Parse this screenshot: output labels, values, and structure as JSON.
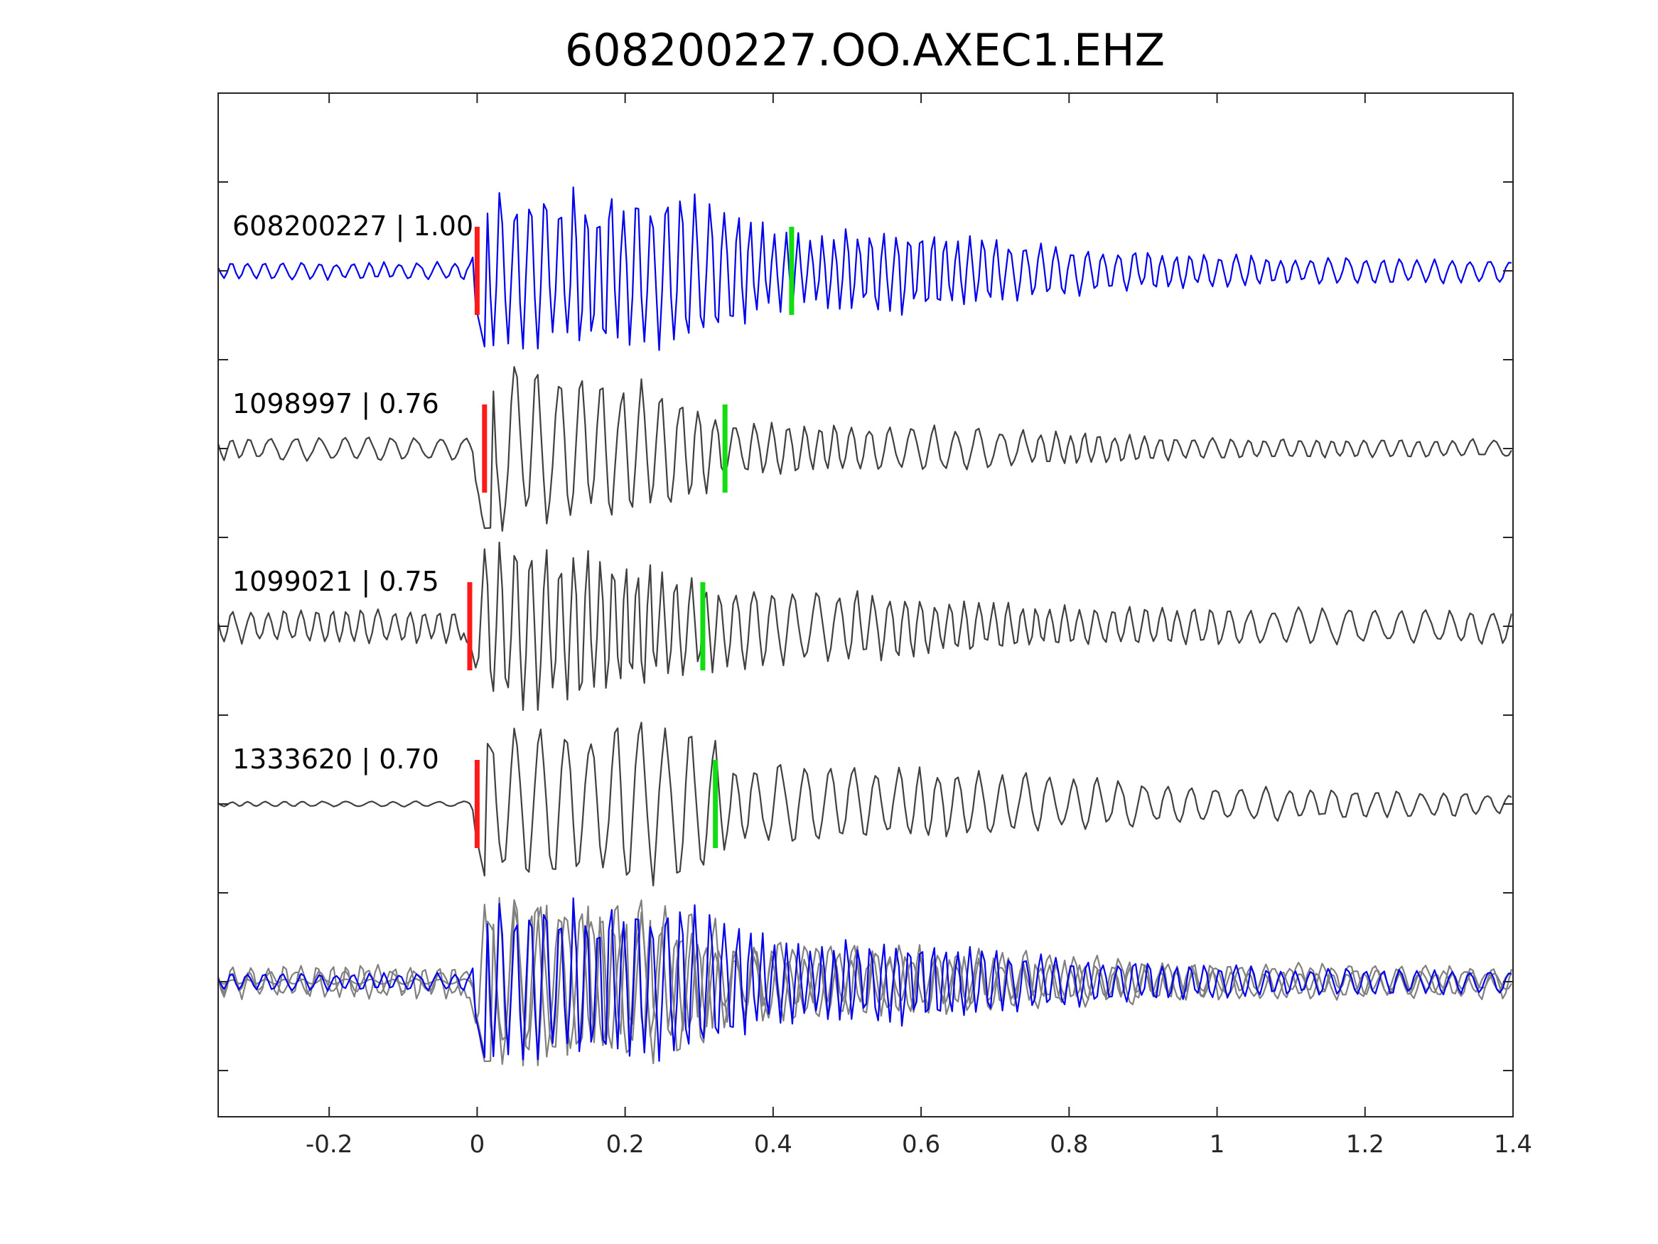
{
  "chart_data": {
    "type": "line",
    "title": "608200227.OO.AXEC1.EHZ",
    "xlabel": "",
    "ylabel": "",
    "xlim": [
      -0.35,
      1.4
    ],
    "x_ticks": [
      -0.2,
      0,
      0.2,
      0.4,
      0.6,
      0.8,
      1,
      1.2,
      1.4
    ],
    "x_tick_labels": [
      "-0.2",
      "0",
      "0.2",
      "0.4",
      "0.6",
      "0.8",
      "1",
      "1.2",
      "1.4"
    ],
    "grid": false,
    "colors": {
      "reference": "#0000ee",
      "match": "#404040",
      "overlay_match": "#808080",
      "p_pick": "#ff1a1a",
      "s_pick": "#11dd11"
    },
    "series": [
      {
        "name": "608200227",
        "label": "608200227 | 1.00",
        "id": "608200227",
        "cc": "1.00",
        "p_pick": 0.0,
        "s_pick": 0.425,
        "color": "#0000ee",
        "amplitude": 1.0,
        "seed": 11,
        "envelope": [
          [
            -0.35,
            0.1
          ],
          [
            -0.01,
            0.1
          ],
          [
            0.01,
            0.95
          ],
          [
            0.1,
            0.9
          ],
          [
            0.2,
            0.95
          ],
          [
            0.26,
            1.0
          ],
          [
            0.32,
            0.8
          ],
          [
            0.42,
            0.45
          ],
          [
            0.6,
            0.5
          ],
          [
            0.75,
            0.32
          ],
          [
            1.0,
            0.18
          ],
          [
            1.4,
            0.12
          ]
        ]
      },
      {
        "name": "1098997",
        "label": "1098997 | 0.76",
        "id": "1098997",
        "cc": "0.76",
        "p_pick": 0.01,
        "s_pick": 0.335,
        "color": "#404040",
        "amplitude": 1.0,
        "seed": 23,
        "envelope": [
          [
            -0.35,
            0.13
          ],
          [
            -0.01,
            0.13
          ],
          [
            0.01,
            1.0
          ],
          [
            0.1,
            0.95
          ],
          [
            0.2,
            0.8
          ],
          [
            0.3,
            0.6
          ],
          [
            0.35,
            0.3
          ],
          [
            0.6,
            0.25
          ],
          [
            1.0,
            0.12
          ],
          [
            1.4,
            0.1
          ]
        ]
      },
      {
        "name": "1099021",
        "label": "1099021 | 0.75",
        "id": "1099021",
        "cc": "0.75",
        "p_pick": -0.01,
        "s_pick": 0.305,
        "color": "#404040",
        "amplitude": 1.0,
        "seed": 37,
        "envelope": [
          [
            -0.35,
            0.18
          ],
          [
            -0.01,
            0.2
          ],
          [
            0.01,
            1.0
          ],
          [
            0.1,
            0.9
          ],
          [
            0.2,
            0.8
          ],
          [
            0.3,
            0.5
          ],
          [
            0.5,
            0.4
          ],
          [
            0.8,
            0.22
          ],
          [
            1.4,
            0.18
          ]
        ]
      },
      {
        "name": "1333620",
        "label": "1333620 | 0.70",
        "id": "1333620",
        "cc": "0.70",
        "p_pick": 0.0,
        "s_pick": 0.322,
        "color": "#404040",
        "amplitude": 1.0,
        "seed": 53,
        "envelope": [
          [
            -0.35,
            0.03
          ],
          [
            -0.01,
            0.03
          ],
          [
            0.01,
            0.9
          ],
          [
            0.1,
            0.85
          ],
          [
            0.2,
            0.9
          ],
          [
            0.3,
            0.9
          ],
          [
            0.35,
            0.5
          ],
          [
            0.6,
            0.4
          ],
          [
            0.8,
            0.3
          ],
          [
            1.0,
            0.2
          ],
          [
            1.4,
            0.12
          ]
        ]
      }
    ],
    "overlay": {
      "label": "",
      "note": "all traces superposed"
    }
  }
}
